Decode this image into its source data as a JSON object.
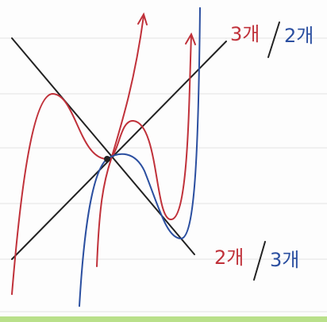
{
  "labels": {
    "top": {
      "left": "3개",
      "right": "2개"
    },
    "bottom": {
      "left": "2개",
      "right": "3개"
    }
  }
}
